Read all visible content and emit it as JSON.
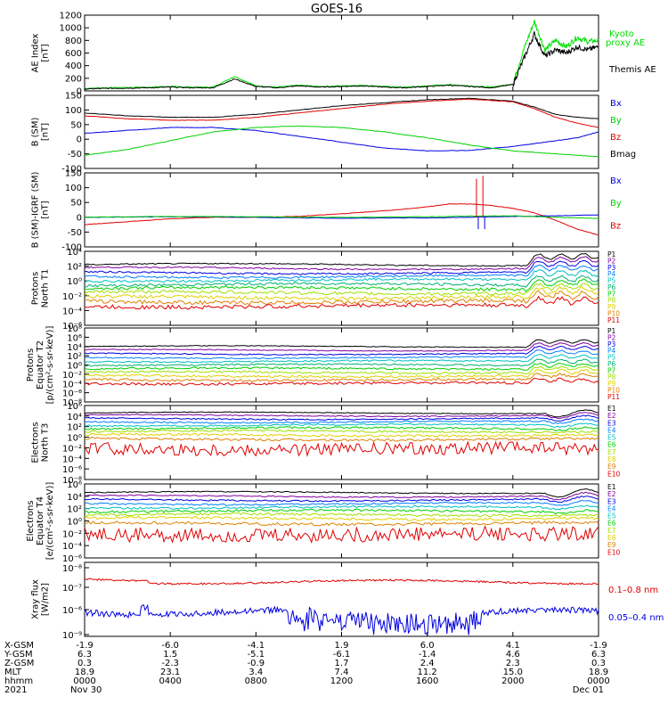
{
  "title": "GOES-16",
  "colors": {
    "black": "#000000",
    "red": "#e00000",
    "green": "#00d000",
    "blue": "#0000e0",
    "kyoto": "#00e000"
  },
  "chart_data": [
    {
      "type": "line",
      "id": "ae",
      "ylabel": [
        "AE Index",
        "[nT]"
      ],
      "ylim": [
        0,
        1200
      ],
      "ytick_labels": [
        "0",
        "200",
        "400",
        "600",
        "800",
        "1000",
        "1200"
      ],
      "yticks": [
        0,
        200,
        400,
        600,
        800,
        1000,
        1200
      ],
      "legend": [
        {
          "name": "Kyoto",
          "color": "#00e000"
        },
        {
          "name": "proxy AE",
          "color": "#00e000"
        },
        {
          "name": "Themis AE",
          "color": "#000000"
        }
      ],
      "series": [
        {
          "name": "Kyoto proxy AE",
          "color": "#00e000",
          "x": [
            0,
            1,
            2,
            3,
            4,
            5,
            6,
            7,
            8,
            9,
            10,
            11,
            12,
            13,
            14,
            15,
            16,
            17,
            18,
            19,
            20,
            20.5,
            21,
            21.5,
            22,
            22.5,
            23,
            23.5,
            24
          ],
          "y": [
            40,
            50,
            55,
            60,
            70,
            60,
            60,
            230,
            80,
            60,
            90,
            70,
            80,
            90,
            70,
            60,
            80,
            100,
            80,
            60,
            110,
            650,
            1100,
            650,
            800,
            700,
            850,
            780,
            800
          ]
        },
        {
          "name": "Themis AE",
          "color": "#000000",
          "x": [
            0,
            1,
            2,
            3,
            4,
            5,
            6,
            7,
            8,
            9,
            10,
            11,
            12,
            13,
            14,
            15,
            16,
            17,
            18,
            19,
            20,
            20.5,
            21,
            21.5,
            22,
            22.5,
            23,
            23.5,
            24
          ],
          "y": [
            30,
            40,
            45,
            50,
            60,
            50,
            50,
            190,
            70,
            50,
            80,
            60,
            70,
            80,
            60,
            50,
            70,
            90,
            70,
            50,
            100,
            500,
            900,
            550,
            650,
            600,
            700,
            650,
            700
          ]
        }
      ]
    },
    {
      "type": "line",
      "id": "bsm",
      "ylabel": [
        "B (SM)",
        "[nT]"
      ],
      "ylim": [
        -100,
        150
      ],
      "ytick_labels": [
        "150",
        "100",
        "50",
        "0",
        "-50",
        "-100"
      ],
      "yticks": [
        150,
        100,
        50,
        0,
        -50,
        -100
      ],
      "legend": [
        {
          "name": "Bx",
          "color": "#0000e0"
        },
        {
          "name": "By",
          "color": "#00d000"
        },
        {
          "name": "Bz",
          "color": "#e00000"
        },
        {
          "name": "Bmag",
          "color": "#000000"
        }
      ],
      "series": [
        {
          "name": "Bmag",
          "color": "#000000",
          "x": [
            0,
            2,
            4,
            6,
            8,
            10,
            12,
            14,
            16,
            18,
            20,
            21,
            22,
            23,
            24
          ],
          "y": [
            90,
            80,
            75,
            75,
            85,
            100,
            115,
            125,
            135,
            140,
            130,
            110,
            85,
            75,
            70
          ]
        },
        {
          "name": "Bz",
          "color": "#e00000",
          "x": [
            0,
            2,
            4,
            6,
            8,
            10,
            12,
            14,
            16,
            18,
            20,
            21,
            22,
            23,
            24
          ],
          "y": [
            80,
            70,
            65,
            65,
            75,
            90,
            105,
            120,
            130,
            137,
            128,
            105,
            75,
            55,
            40
          ]
        },
        {
          "name": "Bx",
          "color": "#0000e0",
          "x": [
            0,
            2,
            4,
            6,
            8,
            10,
            12,
            14,
            16,
            18,
            20,
            21,
            22,
            23,
            24
          ],
          "y": [
            20,
            30,
            40,
            40,
            30,
            10,
            -10,
            -30,
            -40,
            -38,
            -25,
            -15,
            -5,
            5,
            25
          ]
        },
        {
          "name": "By",
          "color": "#00d000",
          "x": [
            0,
            2,
            4,
            6,
            8,
            10,
            12,
            14,
            16,
            18,
            20,
            21,
            22,
            23,
            24
          ],
          "y": [
            -55,
            -35,
            -5,
            25,
            40,
            45,
            40,
            25,
            5,
            -20,
            -40,
            -45,
            -50,
            -55,
            -60
          ]
        }
      ]
    },
    {
      "type": "line",
      "id": "bsm_igrf",
      "ylabel": [
        "B (SM)-IGRF (SM)",
        "[nT]"
      ],
      "ylim": [
        -100,
        150
      ],
      "ytick_labels": [
        "150",
        "100",
        "50",
        "0",
        "-50",
        "-100"
      ],
      "yticks": [
        150,
        100,
        50,
        0,
        -50,
        -100
      ],
      "legend": [
        {
          "name": "Bx",
          "color": "#0000e0"
        },
        {
          "name": "By",
          "color": "#00d000"
        },
        {
          "name": "Bz",
          "color": "#e00000"
        }
      ],
      "series": [
        {
          "name": "Bz",
          "color": "#e00000",
          "x": [
            0,
            2,
            4,
            6,
            8,
            10,
            12,
            14,
            16,
            17,
            18,
            19,
            20,
            21,
            22,
            23,
            24
          ],
          "y": [
            -25,
            -15,
            -5,
            0,
            0,
            3,
            12,
            22,
            35,
            45,
            45,
            40,
            30,
            15,
            -10,
            -40,
            -60
          ]
        },
        {
          "name": "Bx",
          "color": "#0000e0",
          "x": [
            0,
            4,
            8,
            12,
            16,
            18,
            20,
            22,
            24
          ],
          "y": [
            0,
            2,
            0,
            -3,
            -2,
            0,
            3,
            5,
            8
          ]
        },
        {
          "name": "By",
          "color": "#00d000",
          "x": [
            0,
            4,
            8,
            12,
            16,
            18,
            20,
            22,
            24
          ],
          "y": [
            0,
            3,
            2,
            0,
            2,
            4,
            5,
            0,
            -4
          ]
        }
      ]
    },
    {
      "type": "line",
      "id": "protons_t1",
      "scale": "log",
      "ylabel": [
        "Protons",
        "North T1"
      ],
      "ylog": [
        -6,
        4
      ],
      "ytick_labels": [
        "10⁴",
        "10²",
        "10⁰",
        "10⁻²",
        "10⁻⁴",
        "10⁻⁶"
      ],
      "channels": [
        "P1",
        "P2",
        "P3",
        "P4",
        "P5",
        "P6",
        "P7",
        "P8",
        "P9",
        "P10",
        "P11"
      ],
      "channel_colors": [
        "#000000",
        "#8000a0",
        "#0000e0",
        "#0080ff",
        "#00c0c0",
        "#00b070",
        "#00d000",
        "#a0e000",
        "#e0d000",
        "#e08000",
        "#e00000"
      ],
      "base_levels": [
        2.2,
        1.7,
        1.1,
        0.6,
        0.1,
        -0.5,
        -1.0,
        -1.6,
        -2.2,
        -2.8,
        -3.4
      ]
    },
    {
      "type": "line",
      "id": "protons_t2",
      "scale": "log",
      "ylabel": [
        "Protons",
        "Equator T2",
        "[p/(cm²-s-sr-keV)]"
      ],
      "ylog": [
        -8,
        8
      ],
      "ytick_labels": [
        "10⁸",
        "10⁶",
        "10⁴",
        "10²",
        "10⁰",
        "10⁻²",
        "10⁻⁴",
        "10⁻⁶",
        "10⁻⁸"
      ],
      "channels": [
        "P1",
        "P2",
        "P3",
        "P4",
        "P5",
        "P6",
        "P7",
        "P8",
        "P9",
        "P10",
        "P11"
      ],
      "channel_colors": [
        "#000000",
        "#8000a0",
        "#0000e0",
        "#0080ff",
        "#00c0c0",
        "#00b070",
        "#00d000",
        "#a0e000",
        "#e0d000",
        "#e08000",
        "#e00000"
      ],
      "base_levels": [
        4.0,
        3.2,
        2.4,
        1.6,
        0.8,
        0.0,
        -0.8,
        -1.6,
        -2.4,
        -3.2,
        -4.0
      ]
    },
    {
      "type": "line",
      "id": "electrons_t3",
      "scale": "log",
      "ylabel": [
        "Electrons",
        "North T3"
      ],
      "ylog": [
        -8,
        6
      ],
      "ytick_labels": [
        "10⁶",
        "10⁴",
        "10²",
        "10⁰",
        "10⁻²",
        "10⁻⁴",
        "10⁻⁶",
        "10⁻⁸"
      ],
      "channels": [
        "E1",
        "E2",
        "E3",
        "E4",
        "E5",
        "E6",
        "E7",
        "E8",
        "E9",
        "E10"
      ],
      "channel_colors": [
        "#000000",
        "#8000a0",
        "#0000e0",
        "#0080ff",
        "#00c0c0",
        "#00d000",
        "#a0e000",
        "#e0d000",
        "#e08000",
        "#e00000"
      ],
      "base_levels": [
        4.6,
        4.1,
        3.5,
        2.9,
        2.3,
        1.7,
        1.1,
        0.4,
        -0.4,
        -2.2
      ]
    },
    {
      "type": "line",
      "id": "electrons_t4",
      "scale": "log",
      "ylabel": [
        "Electrons",
        "Equator T4",
        "[e/(cm²-s-sr-keV)]"
      ],
      "ylog": [
        -6,
        6
      ],
      "ytick_labels": [
        "10⁶",
        "10⁴",
        "10²",
        "10⁰",
        "10⁻²",
        "10⁻⁴",
        "10⁻⁶"
      ],
      "channels": [
        "E1",
        "E2",
        "E3",
        "E4",
        "E5",
        "E6",
        "E7",
        "E8",
        "E9",
        "E10"
      ],
      "channel_colors": [
        "#000000",
        "#8000a0",
        "#0000e0",
        "#0080ff",
        "#00c0c0",
        "#00d000",
        "#a0e000",
        "#e0d000",
        "#e08000",
        "#e00000"
      ],
      "base_levels": [
        4.6,
        4.0,
        3.4,
        2.8,
        2.2,
        1.6,
        1.0,
        0.4,
        -0.4,
        -2.2
      ]
    },
    {
      "type": "line",
      "id": "xray",
      "scale": "log",
      "ylabel": [
        "Xray flux",
        "[W/m2]"
      ],
      "ylog": [
        -9,
        -8
      ],
      "ytick_labels": [
        "10⁻⁸",
        "10⁻⁷",
        "10⁻⁶",
        "10⁻⁹"
      ],
      "legend": [
        {
          "name": "0.1–0.8 nm",
          "color": "#e00000"
        },
        {
          "name": "0.05–0.4 nm",
          "color": "#0000e0"
        }
      ]
    }
  ],
  "x_axis": {
    "rows": [
      {
        "label": "X-GSM",
        "values": [
          "-1.9",
          "-6.0",
          "-4.1",
          "1.9",
          "6.0",
          "4.1",
          "-1.9"
        ]
      },
      {
        "label": "Y-GSM",
        "values": [
          "6.3",
          "1.5",
          "-5.1",
          "-6.1",
          "-1.4",
          "4.6",
          "6.3"
        ]
      },
      {
        "label": "Z-GSM",
        "values": [
          "0.3",
          "-2.3",
          "-0.9",
          "1.7",
          "2.4",
          "2.3",
          "0.3"
        ]
      },
      {
        "label": "MLT",
        "values": [
          "18.9",
          "23.1",
          "3.4",
          "7.4",
          "11.2",
          "15.0",
          "18.9"
        ]
      },
      {
        "label": "hhmm",
        "values": [
          "0000",
          "0400",
          "0800",
          "1200",
          "1600",
          "2000",
          "0000"
        ]
      }
    ],
    "year": "2021",
    "start_date": "Nov 30",
    "end_date": "Dec 01",
    "hours": [
      0,
      4,
      8,
      12,
      16,
      20,
      24
    ]
  }
}
